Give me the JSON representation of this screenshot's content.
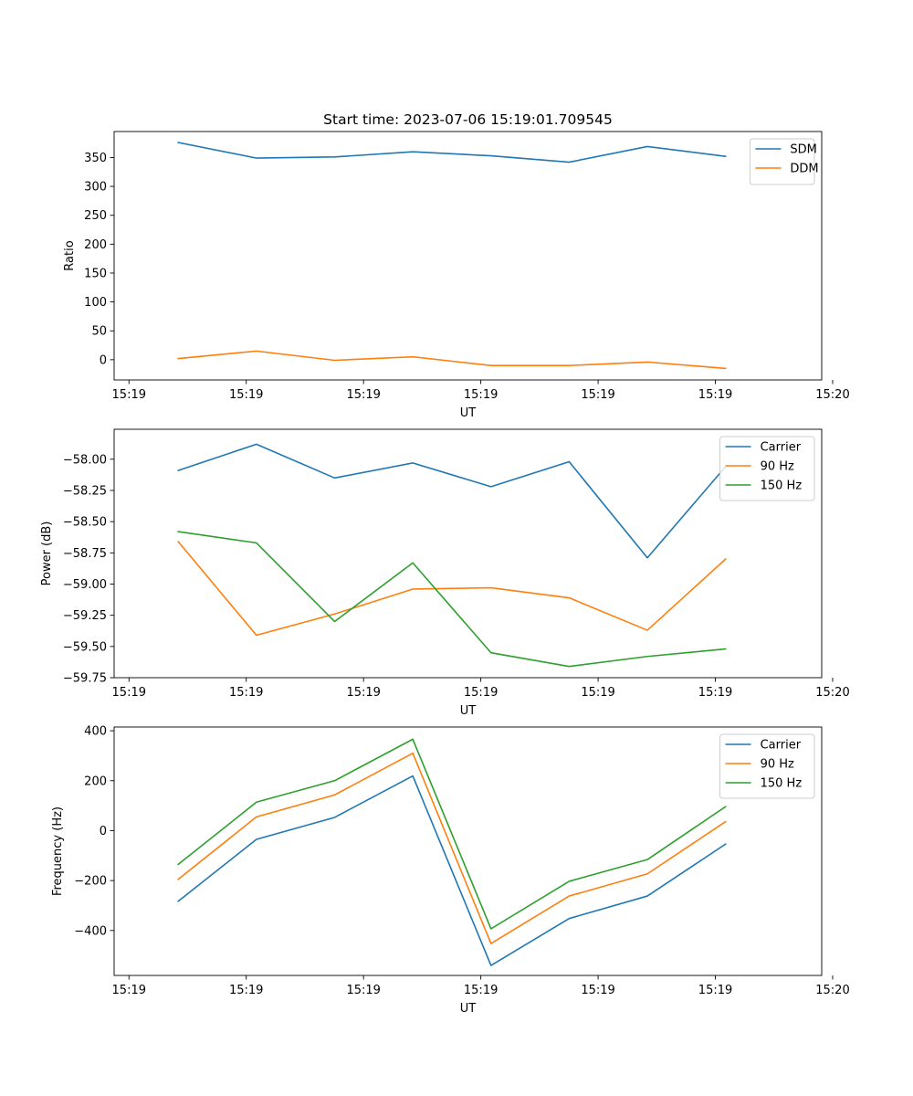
{
  "chart_data": [
    {
      "type": "line",
      "title": "Start time: 2023-07-06 15:19:01.709545",
      "xlabel": "UT",
      "ylabel": "Ratio",
      "x": [
        1,
        2,
        3,
        4,
        5,
        6,
        7,
        8
      ],
      "xlim": [
        0.18,
        9.23
      ],
      "xticks": [
        0.37,
        1.87,
        3.37,
        4.87,
        6.37,
        7.87,
        9.37
      ],
      "xtick_labels": [
        "15:19",
        "15:19",
        "15:19",
        "15:19",
        "15:19",
        "15:19",
        "15:20"
      ],
      "ylim": [
        -35,
        395
      ],
      "yticks": [
        0,
        50,
        100,
        150,
        200,
        250,
        300,
        350
      ],
      "ytick_labels": [
        "0",
        "50",
        "100",
        "150",
        "200",
        "250",
        "300",
        "350"
      ],
      "legend": "top-right",
      "series": [
        {
          "name": "SDM",
          "color": "#1f77b4",
          "values": [
            376,
            349,
            351,
            360,
            353,
            342,
            369,
            352
          ]
        },
        {
          "name": "DDM",
          "color": "#ff7f0e",
          "values": [
            2,
            15,
            -1,
            5,
            -10,
            -10,
            -4,
            -15
          ]
        }
      ]
    },
    {
      "type": "line",
      "xlabel": "UT",
      "ylabel": "Power (dB)",
      "x": [
        1,
        2,
        3,
        4,
        5,
        6,
        7,
        8
      ],
      "xlim": [
        0.18,
        9.23
      ],
      "xticks": [
        0.37,
        1.87,
        3.37,
        4.87,
        6.37,
        7.87,
        9.37
      ],
      "xtick_labels": [
        "15:19",
        "15:19",
        "15:19",
        "15:19",
        "15:19",
        "15:19",
        "15:20"
      ],
      "ylim": [
        -59.75,
        -57.76
      ],
      "yticks": [
        -58.0,
        -58.25,
        -58.5,
        -58.75,
        -59.0,
        -59.25,
        -59.5,
        -59.75
      ],
      "ytick_labels": [
        "−58.00",
        "−58.25",
        "−58.50",
        "−58.75",
        "−59.00",
        "−59.25",
        "−59.50",
        "−59.75"
      ],
      "legend": "top-right",
      "series": [
        {
          "name": "Carrier",
          "color": "#1f77b4",
          "values": [
            -58.09,
            -57.88,
            -58.15,
            -58.03,
            -58.22,
            -58.02,
            -58.79,
            -58.06
          ]
        },
        {
          "name": "90 Hz",
          "color": "#ff7f0e",
          "values": [
            -58.66,
            -59.41,
            -59.24,
            -59.04,
            -59.03,
            -59.11,
            -59.37,
            -58.8
          ]
        },
        {
          "name": "150 Hz",
          "color": "#2ca02c",
          "values": [
            -58.58,
            -58.67,
            -59.3,
            -58.83,
            -59.55,
            -59.66,
            -59.58,
            -59.52
          ]
        }
      ]
    },
    {
      "type": "line",
      "xlabel": "UT",
      "ylabel": "Frequency (Hz)",
      "x": [
        1,
        2,
        3,
        4,
        5,
        6,
        7,
        8
      ],
      "xlim": [
        0.18,
        9.23
      ],
      "xticks": [
        0.37,
        1.87,
        3.37,
        4.87,
        6.37,
        7.87,
        9.37
      ],
      "xtick_labels": [
        "15:19",
        "15:19",
        "15:19",
        "15:19",
        "15:19",
        "15:19",
        "15:20"
      ],
      "ylim": [
        -580,
        415
      ],
      "yticks": [
        400,
        200,
        0,
        -200,
        -400
      ],
      "ytick_labels": [
        "400",
        "200",
        "0",
        "−200",
        "−400"
      ],
      "legend": "top-right",
      "series": [
        {
          "name": "Carrier",
          "color": "#1f77b4",
          "values": [
            -283,
            -35,
            53,
            219,
            -540,
            -352,
            -262,
            -54
          ]
        },
        {
          "name": "90 Hz",
          "color": "#ff7f0e",
          "values": [
            -195,
            55,
            143,
            310,
            -452,
            -262,
            -173,
            36
          ]
        },
        {
          "name": "150 Hz",
          "color": "#2ca02c",
          "values": [
            -135,
            114,
            200,
            366,
            -393,
            -203,
            -116,
            96
          ]
        }
      ]
    }
  ]
}
